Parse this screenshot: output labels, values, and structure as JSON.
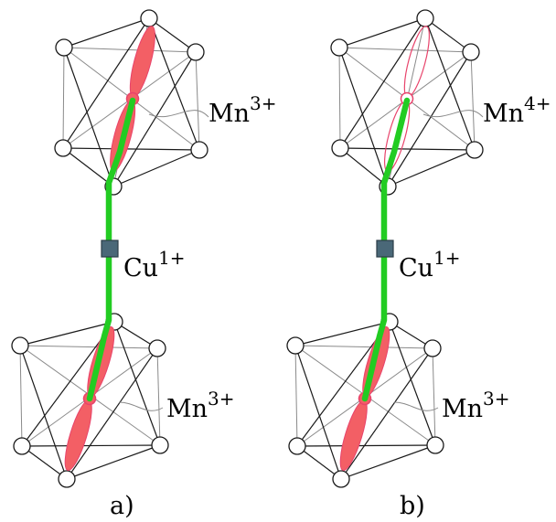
{
  "colors": {
    "orbital_filled": "#f35f65",
    "orbital_outline": "#e8436b",
    "bond": "#22cc22",
    "cu_square": "#4a6878",
    "edge_dark": "#1a1a1a",
    "edge_light": "#8a8a8a"
  },
  "panels": [
    {
      "caption": "a)",
      "cu": {
        "symbol": "Cu",
        "charge": "1+"
      },
      "top_mn": {
        "symbol": "Mn",
        "charge": "3+",
        "upper_lobe": "filled"
      },
      "bottom_mn": {
        "symbol": "Mn",
        "charge": "3+",
        "upper_lobe": "filled"
      }
    },
    {
      "caption": "b)",
      "cu": {
        "symbol": "Cu",
        "charge": "1+"
      },
      "top_mn": {
        "symbol": "Mn",
        "charge": "4+",
        "upper_lobe": "empty"
      },
      "bottom_mn": {
        "symbol": "Mn",
        "charge": "3+",
        "upper_lobe": "filled"
      }
    }
  ]
}
